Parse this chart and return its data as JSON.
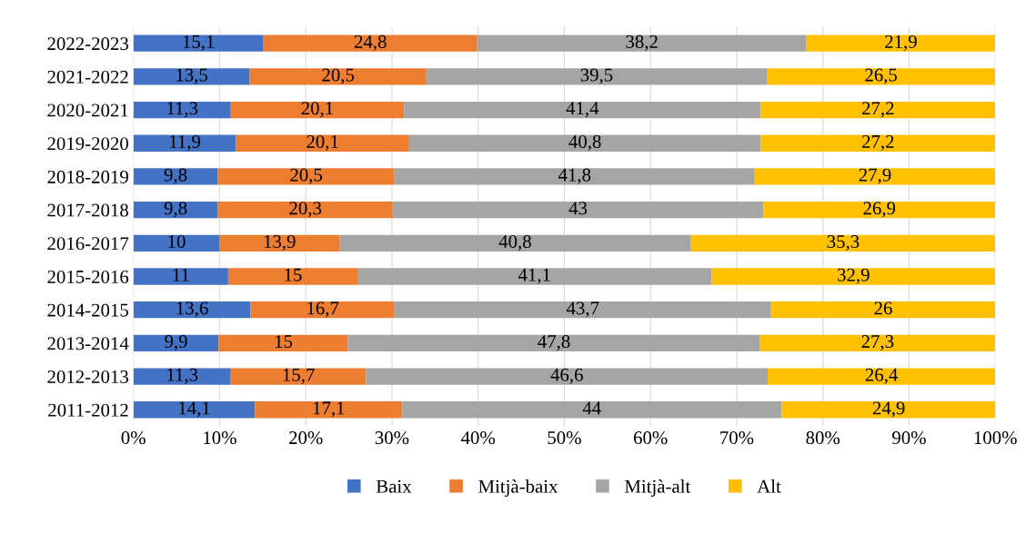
{
  "chart_data": {
    "type": "bar",
    "orientation": "horizontal",
    "stacked": true,
    "categories": [
      "2022-2023",
      "2021-2022",
      "2020-2021",
      "2019-2020",
      "2018-2019",
      "2017-2018",
      "2016-2017",
      "2015-2016",
      "2014-2015",
      "2013-2014",
      "2012-2013",
      "2011-2012"
    ],
    "series": [
      {
        "name": "Baix",
        "color": "#4472c4",
        "values": [
          15.1,
          13.5,
          11.3,
          11.9,
          9.8,
          9.8,
          10,
          11,
          13.6,
          9.9,
          11.3,
          14.1
        ],
        "value_labels": [
          "15,1",
          "13,5",
          "11,3",
          "11,9",
          "9,8",
          "9,8",
          "10",
          "11",
          "13,6",
          "9,9",
          "11,3",
          "14,1"
        ]
      },
      {
        "name": "Mitjà-baix",
        "color": "#ed7d31",
        "values": [
          24.8,
          20.5,
          20.1,
          20.1,
          20.5,
          20.3,
          13.9,
          15,
          16.7,
          15,
          15.7,
          17.1
        ],
        "value_labels": [
          "24,8",
          "20,5",
          "20,1",
          "20,1",
          "20,5",
          "20,3",
          "13,9",
          "15",
          "16,7",
          "15",
          "15,7",
          "17,1"
        ]
      },
      {
        "name": "Mitjà-alt",
        "color": "#a5a5a5",
        "values": [
          38.2,
          39.5,
          41.4,
          40.8,
          41.8,
          43,
          40.8,
          41.1,
          43.7,
          47.8,
          46.6,
          44
        ],
        "value_labels": [
          "38,2",
          "39,5",
          "41,4",
          "40,8",
          "41,8",
          "43",
          "40,8",
          "41,1",
          "43,7",
          "47,8",
          "46,6",
          "44"
        ]
      },
      {
        "name": "Alt",
        "color": "#ffc000",
        "values": [
          21.9,
          26.5,
          27.2,
          27.2,
          27.9,
          26.9,
          35.3,
          32.9,
          26,
          27.3,
          26.4,
          24.9
        ],
        "value_labels": [
          "21,9",
          "26,5",
          "27,2",
          "27,2",
          "27,9",
          "26,9",
          "35,3",
          "32,9",
          "26",
          "27,3",
          "26,4",
          "24,9"
        ]
      }
    ],
    "xlim": [
      0,
      100
    ],
    "xticks": [
      {
        "value": 0,
        "label": "0%"
      },
      {
        "value": 10,
        "label": "10%"
      },
      {
        "value": 20,
        "label": "20%"
      },
      {
        "value": 30,
        "label": "30%"
      },
      {
        "value": 40,
        "label": "40%"
      },
      {
        "value": 50,
        "label": "50%"
      },
      {
        "value": 60,
        "label": "60%"
      },
      {
        "value": 70,
        "label": "70%"
      },
      {
        "value": 80,
        "label": "80%"
      },
      {
        "value": 90,
        "label": "90%"
      },
      {
        "value": 100,
        "label": "100%"
      }
    ],
    "grid": "x",
    "legend": "bottom"
  }
}
